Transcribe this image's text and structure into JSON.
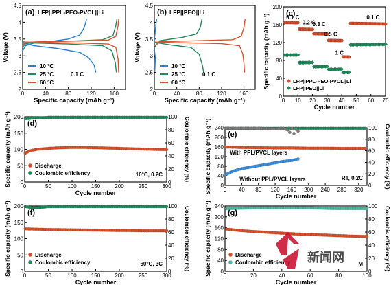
{
  "chart_data": [
    {
      "panel": "(a)",
      "type": "line",
      "title": "LFP||PPL-PEO-PVCL||Li",
      "xlabel": "Specific capacity (mAh g⁻¹)",
      "ylabel": "Voltage (V)",
      "xlim": [
        0,
        180
      ],
      "ylim": [
        2.0,
        4.5
      ],
      "xticks": [
        0,
        40,
        80,
        120,
        160
      ],
      "yticks": [
        2.0,
        2.5,
        3.0,
        3.5,
        4.0,
        4.5
      ],
      "legend_note": "0.1 C",
      "series": [
        {
          "name": "10 °C",
          "color": "#2a7fd4",
          "charge": [
            [
              0,
              3.15
            ],
            [
              5,
              3.3
            ],
            [
              20,
              3.38
            ],
            [
              50,
              3.43
            ],
            [
              80,
              3.5
            ],
            [
              100,
              3.62
            ],
            [
              108,
              3.85
            ],
            [
              112,
              4.1
            ]
          ],
          "discharge": [
            [
              0,
              3.38
            ],
            [
              20,
              3.3
            ],
            [
              60,
              3.22
            ],
            [
              100,
              3.1
            ],
            [
              115,
              2.95
            ],
            [
              125,
              2.72
            ],
            [
              128,
              2.5
            ]
          ]
        },
        {
          "name": "25 °C",
          "color": "#1f8a5b",
          "charge": [
            [
              0,
              3.25
            ],
            [
              5,
              3.36
            ],
            [
              30,
              3.41
            ],
            [
              90,
              3.44
            ],
            [
              140,
              3.48
            ],
            [
              158,
              3.6
            ],
            [
              163,
              3.9
            ],
            [
              165,
              4.1
            ]
          ],
          "discharge": [
            [
              0,
              3.42
            ],
            [
              20,
              3.38
            ],
            [
              80,
              3.35
            ],
            [
              140,
              3.3
            ],
            [
              156,
              3.15
            ],
            [
              162,
              2.8
            ],
            [
              164,
              2.5
            ]
          ]
        },
        {
          "name": "60 °C",
          "color": "#d9512c",
          "charge": [
            [
              0,
              3.3
            ],
            [
              5,
              3.4
            ],
            [
              30,
              3.42
            ],
            [
              100,
              3.44
            ],
            [
              150,
              3.47
            ],
            [
              163,
              3.58
            ],
            [
              167,
              3.9
            ],
            [
              168,
              4.1
            ]
          ],
          "discharge": [
            [
              0,
              3.41
            ],
            [
              30,
              3.4
            ],
            [
              100,
              3.38
            ],
            [
              150,
              3.35
            ],
            [
              163,
              3.25
            ],
            [
              167,
              2.9
            ],
            [
              168,
              2.5
            ]
          ]
        }
      ]
    },
    {
      "panel": "(b)",
      "type": "line",
      "title": "LFP||PEO||Li",
      "xlabel": "Specific capacity (mAh g⁻¹)",
      "ylabel": "Voltage (V)",
      "xlim": [
        0,
        180
      ],
      "ylim": [
        2.0,
        4.5
      ],
      "xticks": [
        0,
        40,
        80,
        120,
        160
      ],
      "yticks": [
        2.0,
        2.5,
        3.0,
        3.5,
        4.0,
        4.5
      ],
      "legend_note": "0.1 C",
      "series": [
        {
          "name": "10 °C",
          "color": "#2a7fd4",
          "charge": [
            [
              0,
              3.45
            ],
            [
              2,
              3.8
            ],
            [
              4,
              4.1
            ]
          ],
          "discharge": [
            [
              0,
              3.2
            ],
            [
              2,
              2.9
            ],
            [
              3,
              2.5
            ]
          ]
        },
        {
          "name": "25 °C",
          "color": "#1f8a5b",
          "charge": [
            [
              0,
              3.25
            ],
            [
              10,
              3.45
            ],
            [
              50,
              3.55
            ],
            [
              75,
              3.65
            ],
            [
              82,
              3.85
            ],
            [
              85,
              4.1
            ]
          ],
          "discharge": [
            [
              0,
              3.4
            ],
            [
              30,
              3.32
            ],
            [
              65,
              3.25
            ],
            [
              80,
              3.05
            ],
            [
              86,
              2.7
            ],
            [
              88,
              2.5
            ]
          ]
        },
        {
          "name": "60 °C",
          "color": "#d9512c",
          "charge": [
            [
              0,
              3.3
            ],
            [
              10,
              3.42
            ],
            [
              80,
              3.45
            ],
            [
              140,
              3.48
            ],
            [
              155,
              3.58
            ],
            [
              160,
              3.85
            ],
            [
              162,
              4.1
            ]
          ],
          "discharge": [
            [
              0,
              3.41
            ],
            [
              50,
              3.39
            ],
            [
              120,
              3.36
            ],
            [
              152,
              3.3
            ],
            [
              158,
              3.05
            ],
            [
              160,
              2.75
            ],
            [
              161,
              2.5
            ]
          ]
        }
      ]
    },
    {
      "panel": "(c)",
      "type": "scatter",
      "xlabel": "Cycle number",
      "ylabel": "Specific capacity (mAh g⁻¹)",
      "xlim": [
        0,
        70
      ],
      "ylim": [
        0,
        200
      ],
      "xticks": [
        0,
        10,
        20,
        30,
        40,
        50,
        60,
        70
      ],
      "yticks": [
        0,
        40,
        80,
        120,
        160,
        200
      ],
      "annotations": [
        {
          "text": "0.1 C",
          "x": 2,
          "y": 172
        },
        {
          "text": "0.2 C",
          "x": 13,
          "y": 161
        },
        {
          "text": "0.3 C",
          "x": 20,
          "y": 157
        },
        {
          "text": "0.5 C",
          "x": 28,
          "y": 135
        },
        {
          "text": "1 C",
          "x": 35.5,
          "y": 93
        },
        {
          "text": "0.1 C",
          "x": 57,
          "y": 172
        }
      ],
      "series": [
        {
          "name": "LFP||PPL-PEO-PVCL||Li",
          "color": "#d9512c",
          "marker": "circle",
          "segments": [
            [
              1,
              10,
              165
            ],
            [
              11,
              20,
              150
            ],
            [
              21,
              30,
              140
            ],
            [
              31,
              40,
              125
            ],
            [
              41,
              45,
              88
            ],
            [
              46,
              70,
              163
            ]
          ]
        },
        {
          "name": "LFP||PEO||Li",
          "color": "#1f8a5b",
          "marker": "diamond",
          "segments": [
            [
              1,
              10,
              92
            ],
            [
              11,
              20,
              75
            ],
            [
              21,
              30,
              66
            ],
            [
              31,
              40,
              60
            ],
            [
              41,
              45,
              53
            ],
            [
              46,
              70,
              115
            ]
          ]
        }
      ]
    },
    {
      "panel": "(d)",
      "type": "scatter",
      "xlabel": "Cycle number",
      "ylabel": "Specific capacity (mAh g⁻¹)",
      "y2label": "Coulombic efficiency (%)",
      "xlim": [
        0,
        300
      ],
      "ylim": [
        0,
        200
      ],
      "y2lim": [
        0,
        100
      ],
      "xticks": [
        0,
        50,
        100,
        150,
        200,
        250,
        300
      ],
      "yticks": [
        0,
        50,
        100,
        150,
        200
      ],
      "y2ticks": [
        0,
        20,
        40,
        60,
        80,
        100
      ],
      "condition": "10°C, 0.2C",
      "series": [
        {
          "name": "Discharge",
          "color": "#d9512c",
          "axis": "left",
          "points": [
            [
              1,
              88
            ],
            [
              10,
              95
            ],
            [
              25,
              100
            ],
            [
              50,
              103
            ],
            [
              75,
              105
            ],
            [
              100,
              106
            ],
            [
              125,
              106
            ],
            [
              150,
              105
            ],
            [
              175,
              104
            ],
            [
              200,
              103
            ],
            [
              225,
              102
            ],
            [
              250,
              101
            ],
            [
              275,
              100
            ],
            [
              300,
              99
            ]
          ]
        },
        {
          "name": "Coulombic efficiency",
          "color": "#1f8a5b",
          "axis": "right",
          "points": [
            [
              1,
              97
            ],
            [
              50,
              99
            ],
            [
              100,
              99
            ],
            [
              150,
              99
            ],
            [
              200,
              99
            ],
            [
              250,
              99
            ],
            [
              300,
              99
            ]
          ]
        }
      ]
    },
    {
      "panel": "(e)",
      "type": "scatter",
      "xlabel": "Cycle number",
      "ylabel": "Specific capacity (mAh g⁻¹)",
      "y2label": "Coulombic efficiency (%)",
      "xlim": [
        0,
        340
      ],
      "ylim": [
        0,
        240
      ],
      "y2lim": [
        0,
        100
      ],
      "xticks": [
        0,
        40,
        80,
        120,
        160,
        200,
        240,
        280,
        320
      ],
      "yticks": [
        0,
        40,
        80,
        120,
        160,
        200,
        240
      ],
      "y2ticks": [
        0,
        20,
        40,
        60,
        80,
        100
      ],
      "condition": "RT, 0.2C",
      "labels": [
        "With PPL/PVCL layers",
        "Without PPL/PVCL layers"
      ],
      "series": [
        {
          "name": "With PPL/PVCL layers discharge",
          "color": "#d9512c",
          "axis": "left",
          "points": [
            [
              1,
              160
            ],
            [
              40,
              158
            ],
            [
              80,
              157
            ],
            [
              120,
              156
            ],
            [
              160,
              156
            ],
            [
              200,
              155
            ],
            [
              240,
              155
            ],
            [
              280,
              154
            ],
            [
              320,
              154
            ],
            [
              335,
              154
            ]
          ]
        },
        {
          "name": "Without PPL/PVCL layers discharge",
          "color": "#3b8fdb",
          "axis": "left",
          "points": [
            [
              1,
              44
            ],
            [
              20,
              60
            ],
            [
              40,
              70
            ],
            [
              60,
              76
            ],
            [
              80,
              82
            ],
            [
              100,
              88
            ],
            [
              120,
              94
            ],
            [
              140,
              100
            ],
            [
              160,
              104
            ],
            [
              170,
              108
            ],
            [
              175,
              110
            ]
          ]
        },
        {
          "name": "With PPL/PVCL layers CE",
          "color": "#1f8a5b",
          "axis": "right",
          "points": [
            [
              1,
              99
            ],
            [
              80,
              99
            ],
            [
              160,
              99
            ],
            [
              240,
              99
            ],
            [
              320,
              99
            ],
            [
              335,
              99
            ]
          ]
        },
        {
          "name": "Without PPL/PVCL layers CE",
          "color": "#7a7a7a",
          "axis": "right",
          "points": [
            [
              1,
              99
            ],
            [
              40,
              99
            ],
            [
              80,
              99
            ],
            [
              120,
              98
            ],
            [
              140,
              99
            ],
            [
              150,
              96
            ],
            [
              155,
              92
            ],
            [
              160,
              99
            ],
            [
              165,
              90
            ],
            [
              170,
              97
            ],
            [
              175,
              94
            ]
          ]
        }
      ]
    },
    {
      "panel": "(f)",
      "type": "scatter",
      "xlabel": "Cycle number",
      "ylabel": "Specific capacity (mAh g⁻¹)",
      "y2label": "Coulombic efficiency (%)",
      "xlim": [
        0,
        300
      ],
      "ylim": [
        0,
        200
      ],
      "y2lim": [
        0,
        100
      ],
      "xticks": [
        0,
        50,
        100,
        150,
        200,
        250,
        300
      ],
      "yticks": [
        0,
        50,
        100,
        150,
        200
      ],
      "y2ticks": [
        0,
        20,
        40,
        60,
        80,
        100
      ],
      "condition": "60°C, 3C",
      "series": [
        {
          "name": "Discharge",
          "color": "#d9512c",
          "axis": "left",
          "points": [
            [
              1,
              130
            ],
            [
              50,
              128
            ],
            [
              100,
              127
            ],
            [
              150,
              126
            ],
            [
              200,
              125
            ],
            [
              250,
              124
            ],
            [
              300,
              124
            ]
          ]
        },
        {
          "name": "Coulombic efficiency",
          "color": "#1f8a5b",
          "axis": "right",
          "points": [
            [
              1,
              99
            ],
            [
              20,
              97
            ],
            [
              50,
              99
            ],
            [
              100,
              99
            ],
            [
              150,
              99
            ],
            [
              200,
              99
            ],
            [
              250,
              99
            ],
            [
              300,
              99
            ]
          ]
        }
      ]
    },
    {
      "panel": "(g)",
      "type": "scatter",
      "xlabel": "Cycle number",
      "ylabel": "Specific capacity (mAh g⁻¹)",
      "y2label": "Coulombic efficiency (%)",
      "xlim": [
        0,
        100
      ],
      "ylim": [
        0,
        240
      ],
      "y2lim": [
        0,
        100
      ],
      "xticks": [
        0,
        20,
        40,
        60,
        80,
        100
      ],
      "yticks": [
        0,
        40,
        80,
        120,
        160,
        200,
        240
      ],
      "y2ticks": [
        0,
        20,
        40,
        60,
        80,
        100
      ],
      "condition": "M",
      "series": [
        {
          "name": "Discharge",
          "color": "#d9512c",
          "axis": "left",
          "points": [
            [
              1,
              155
            ],
            [
              10,
              150
            ],
            [
              20,
              146
            ],
            [
              30,
              143
            ],
            [
              40,
              140
            ],
            [
              50,
              137
            ],
            [
              60,
              135
            ],
            [
              70,
              133
            ],
            [
              80,
              131
            ],
            [
              90,
              129
            ],
            [
              100,
              128
            ]
          ]
        },
        {
          "name": "Coulombic efficiency",
          "color": "#4fb8a0",
          "axis": "right",
          "points": [
            [
              1,
              96
            ],
            [
              20,
              97
            ],
            [
              40,
              97
            ],
            [
              60,
              97
            ],
            [
              80,
              96
            ],
            [
              100,
              96
            ]
          ]
        }
      ]
    }
  ],
  "watermark": {
    "text": "新闻网"
  }
}
